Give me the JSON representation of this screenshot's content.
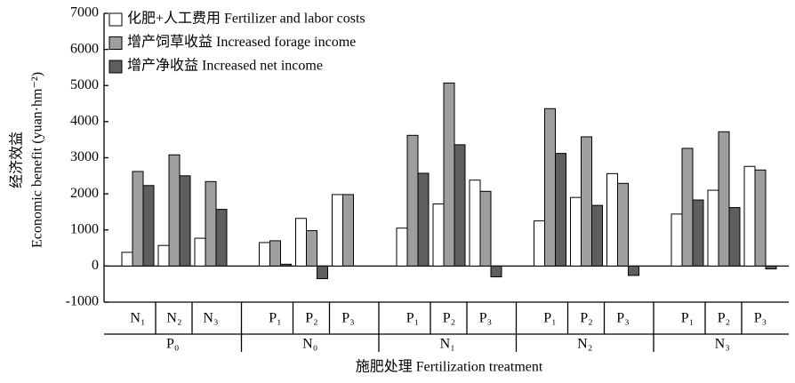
{
  "chart_data": {
    "type": "bar",
    "x_label": "施肥处理 Fertilization treatment",
    "y_label": [
      "经济效益",
      "Economic benefit (yuan·hm⁻²)"
    ],
    "groups": [
      {
        "label": "P₀",
        "categories": [
          "N₁",
          "N₂",
          "N₃"
        ]
      },
      {
        "label": "N₀",
        "categories": [
          "P₁",
          "P₂",
          "P₃"
        ]
      },
      {
        "label": "N₁",
        "categories": [
          "P₁",
          "P₂",
          "P₃"
        ]
      },
      {
        "label": "N₂",
        "categories": [
          "P₁",
          "P₂",
          "P₃"
        ]
      },
      {
        "label": "N₃",
        "categories": [
          "P₁",
          "P₂",
          "P₃"
        ]
      }
    ],
    "series": [
      {
        "name": "化肥+人工费用 Fertilizer and labor costs",
        "color": "#ffffff",
        "values": [
          380,
          570,
          770,
          650,
          1320,
          1980,
          1050,
          1720,
          2380,
          1250,
          1900,
          2560,
          1440,
          2100,
          2760
        ]
      },
      {
        "name": "增产饲草收益 Increased forage income",
        "color": "#9e9e9e",
        "values": [
          2620,
          3080,
          2340,
          700,
          980,
          1980,
          3620,
          5070,
          2070,
          4360,
          3580,
          2290,
          3260,
          3720,
          2660
        ]
      },
      {
        "name": "增产净收益 Increased net income",
        "color": "#5e5e5e",
        "values": [
          2230,
          2500,
          1570,
          50,
          -350,
          0,
          2570,
          3360,
          -300,
          3120,
          1680,
          -260,
          1830,
          1620,
          -80
        ]
      }
    ],
    "ylim": [
      -1000,
      7000
    ],
    "yticks": [
      -1000,
      0,
      1000,
      2000,
      3000,
      4000,
      5000,
      6000,
      7000
    ],
    "legend": "upper left"
  }
}
